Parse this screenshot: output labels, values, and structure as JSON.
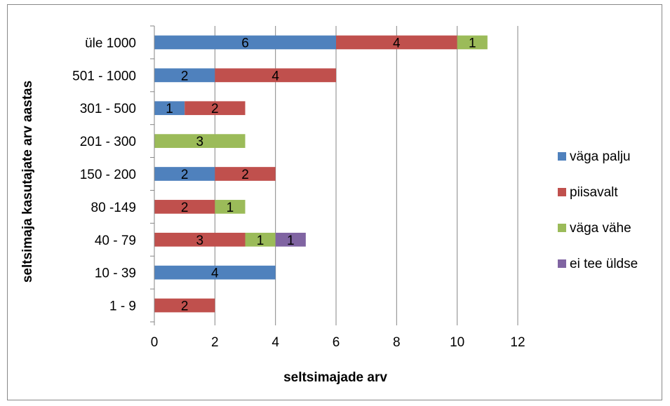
{
  "chart_data": {
    "type": "bar",
    "orientation": "horizontal",
    "stacked": true,
    "categories": [
      "üle 1000",
      "501 - 1000",
      "301 - 500",
      "201 - 300",
      "150 - 200",
      "80 -149",
      "40 - 79",
      "10 - 39",
      "1 - 9"
    ],
    "series": [
      {
        "name": "väga palju",
        "color": "#4F81BD",
        "values": [
          6,
          2,
          1,
          0,
          2,
          0,
          0,
          4,
          0
        ]
      },
      {
        "name": "piisavalt",
        "color": "#C0504D",
        "values": [
          4,
          4,
          2,
          0,
          2,
          2,
          3,
          0,
          2
        ]
      },
      {
        "name": "väga vähe",
        "color": "#9BBB59",
        "values": [
          1,
          0,
          0,
          3,
          0,
          1,
          1,
          0,
          0
        ]
      },
      {
        "name": "ei tee üldse",
        "color": "#8064A2",
        "values": [
          0,
          0,
          0,
          0,
          0,
          0,
          1,
          0,
          0
        ]
      }
    ],
    "xlabel": "seltsimajade arv",
    "ylabel": "seltsimaja kasutajate arv aastas",
    "xlim": [
      0,
      12
    ],
    "xticks": [
      0,
      2,
      4,
      6,
      8,
      10,
      12
    ],
    "grid": "vertical",
    "legend": "right"
  }
}
